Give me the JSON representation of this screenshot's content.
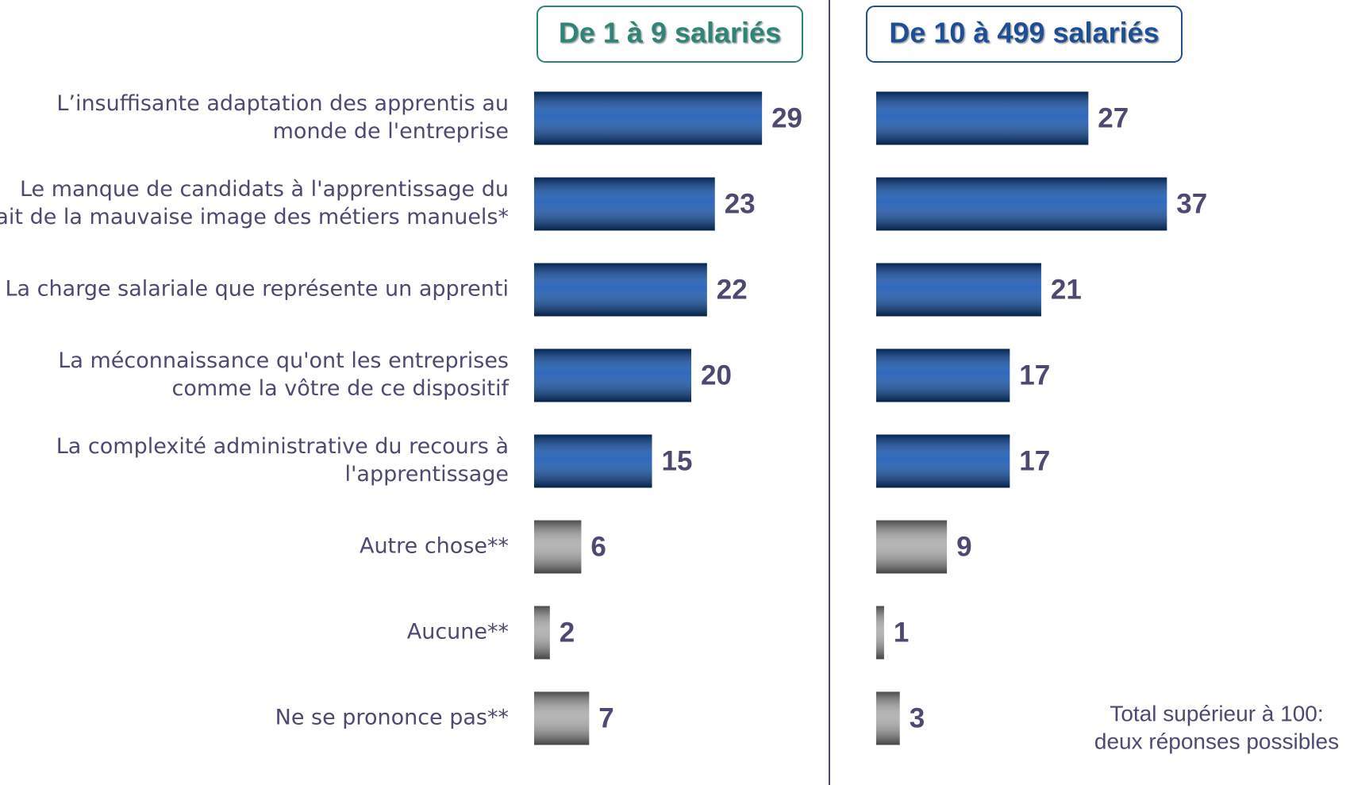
{
  "chart_data": {
    "type": "bar",
    "orientation": "horizontal",
    "categories": [
      [
        "L’insuffisante adaptation des apprentis au",
        "monde de l'entreprise"
      ],
      [
        "Le manque de candidats à l'apprentissage du",
        "fait de la mauvaise image des métiers manuels*"
      ],
      [
        "La charge salariale que représente un apprenti"
      ],
      [
        "La méconnaissance qu'ont les entreprises",
        "comme la vôtre de ce dispositif"
      ],
      [
        "La complexité administrative du recours à",
        "l'apprentissage"
      ],
      [
        "Autre chose**"
      ],
      [
        "Aucune**"
      ],
      [
        "Ne se prononce pas**"
      ]
    ],
    "category_colors": [
      "#0a4fb0",
      "#0a4fb0",
      "#0a4fb0",
      "#0a4fb0",
      "#0a4fb0",
      "#a8a8a8",
      "#a8a8a8",
      "#a8a8a8"
    ],
    "series": [
      {
        "name": "De 1 à 9 salariés",
        "color": "#2e8577",
        "values": [
          29,
          23,
          22,
          20,
          15,
          6,
          2,
          7
        ]
      },
      {
        "name": "De 10 à 499 salariés",
        "color": "#1f4f96",
        "values": [
          27,
          37,
          21,
          17,
          17,
          9,
          1,
          3
        ]
      }
    ],
    "note": [
      "Total supérieur à 100:",
      "deux réponses possibles"
    ]
  }
}
